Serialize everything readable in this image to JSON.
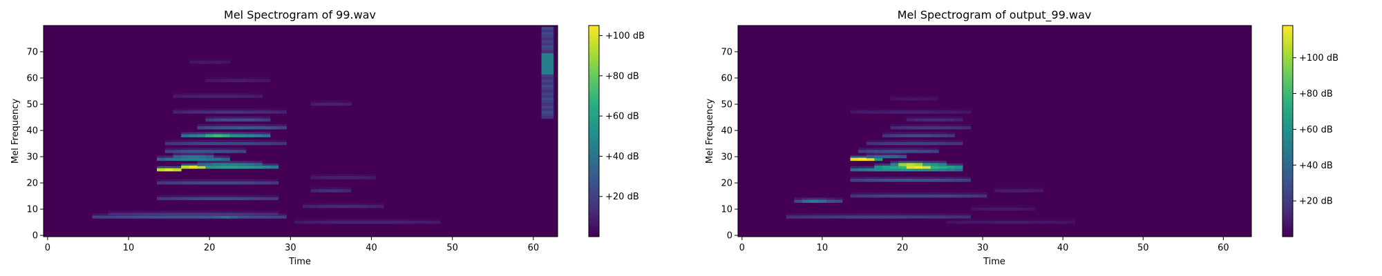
{
  "chart_data": [
    {
      "type": "heatmap",
      "title": "Mel Spectrogram of 99.wav",
      "xlabel": "Time",
      "ylabel": "Mel Frequency",
      "xlim": [
        -0.5,
        63
      ],
      "ylim": [
        -0.5,
        80
      ],
      "xticks": [
        "0",
        "10",
        "20",
        "30",
        "40",
        "50",
        "60"
      ],
      "yticks": [
        "0",
        "10",
        "20",
        "30",
        "40",
        "50",
        "60",
        "70"
      ],
      "colorbar": {
        "range": [
          0,
          105
        ],
        "ticks": [
          {
            "value": 20,
            "label": "+20 dB"
          },
          {
            "value": 40,
            "label": "+40 dB"
          },
          {
            "value": 60,
            "label": "+60 dB"
          },
          {
            "value": 80,
            "label": "+80 dB"
          },
          {
            "value": 100,
            "label": "+100 dB"
          }
        ]
      },
      "colormap": "viridis",
      "background_level": 0,
      "time_frames": 63,
      "mel_bins": 80,
      "bands": [
        {
          "y": 7,
          "x0": 5.5,
          "x1": 29.5,
          "level": 28,
          "peak_x": 22,
          "peak_level": 38
        },
        {
          "y": 8,
          "x0": 7.5,
          "x1": 28.5,
          "level": 18
        },
        {
          "y": 5,
          "x0": 30.5,
          "x1": 48.5,
          "level": 10
        },
        {
          "y": 11,
          "x0": 31.5,
          "x1": 41.5,
          "level": 12
        },
        {
          "y": 14,
          "x0": 13.5,
          "x1": 28.5,
          "level": 22
        },
        {
          "y": 17,
          "x0": 32.5,
          "x1": 37.5,
          "level": 14
        },
        {
          "y": 20,
          "x0": 13.5,
          "x1": 28.5,
          "level": 24
        },
        {
          "y": 22,
          "x0": 32.5,
          "x1": 40.5,
          "level": 10
        },
        {
          "y": 25,
          "x0": 13.5,
          "x1": 16.5,
          "level": 75,
          "peak_x": 15,
          "peak_level": 100
        },
        {
          "y": 26,
          "x0": 16.5,
          "x1": 28.5,
          "level": 60,
          "peak_x": 18,
          "peak_level": 100
        },
        {
          "y": 27,
          "x0": 18.5,
          "x1": 26.5,
          "level": 45
        },
        {
          "y": 29,
          "x0": 13.5,
          "x1": 22.5,
          "level": 45
        },
        {
          "y": 30,
          "x0": 15.5,
          "x1": 20.5,
          "level": 40
        },
        {
          "y": 32,
          "x0": 14.5,
          "x1": 24.5,
          "level": 28
        },
        {
          "y": 35,
          "x0": 14.5,
          "x1": 29.5,
          "level": 22
        },
        {
          "y": 38,
          "x0": 16.5,
          "x1": 27.5,
          "level": 55,
          "peak_x": 21,
          "peak_level": 72
        },
        {
          "y": 41,
          "x0": 18.5,
          "x1": 29.5,
          "level": 30
        },
        {
          "y": 44,
          "x0": 19.5,
          "x1": 27.5,
          "level": 25
        },
        {
          "y": 47,
          "x0": 15.5,
          "x1": 29.5,
          "level": 14
        },
        {
          "y": 50,
          "x0": 32.5,
          "x1": 37.5,
          "level": 10
        },
        {
          "y": 53,
          "x0": 15.5,
          "x1": 26.5,
          "level": 10
        },
        {
          "y": 59,
          "x0": 19.5,
          "x1": 27.5,
          "level": 8
        },
        {
          "y": 66,
          "x0": 17.5,
          "x1": 22.5,
          "level": 7
        }
      ],
      "edge_column": {
        "x0": 61,
        "x1": 62.5,
        "y0": 44.5,
        "y1": 79.5,
        "level": 25,
        "peak_y0": 62,
        "peak_y1": 69,
        "peak_level": 45
      }
    },
    {
      "type": "heatmap",
      "title": "Mel Spectrogram of output_99.wav",
      "xlabel": "Time",
      "ylabel": "Mel Frequency",
      "xlim": [
        -0.5,
        63.5
      ],
      "ylim": [
        -0.5,
        80
      ],
      "xticks": [
        "0",
        "10",
        "20",
        "30",
        "40",
        "50",
        "60"
      ],
      "yticks": [
        "0",
        "10",
        "20",
        "30",
        "40",
        "50",
        "60",
        "70"
      ],
      "colorbar": {
        "range": [
          0,
          118
        ],
        "ticks": [
          {
            "value": 20,
            "label": "+20 dB"
          },
          {
            "value": 40,
            "label": "+40 dB"
          },
          {
            "value": 60,
            "label": "+60 dB"
          },
          {
            "value": 80,
            "label": "+80 dB"
          },
          {
            "value": 100,
            "label": "+100 dB"
          }
        ]
      },
      "colormap": "viridis",
      "background_level": 0,
      "time_frames": 64,
      "mel_bins": 80,
      "bands": [
        {
          "y": 7,
          "x0": 5.5,
          "x1": 28.5,
          "level": 22
        },
        {
          "y": 13,
          "x0": 6.5,
          "x1": 12.5,
          "level": 35,
          "peak_x": 9,
          "peak_level": 50
        },
        {
          "y": 5,
          "x0": 25.5,
          "x1": 41.5,
          "level": 8
        },
        {
          "y": 10,
          "x0": 28.5,
          "x1": 36.5,
          "level": 8
        },
        {
          "y": 15,
          "x0": 13.5,
          "x1": 30.5,
          "level": 25
        },
        {
          "y": 17,
          "x0": 31.5,
          "x1": 37.5,
          "level": 10
        },
        {
          "y": 21,
          "x0": 13.5,
          "x1": 28.5,
          "level": 30
        },
        {
          "y": 25,
          "x0": 13.5,
          "x1": 27.5,
          "level": 60
        },
        {
          "y": 26,
          "x0": 16.5,
          "x1": 27.5,
          "level": 80,
          "peak_x": 22,
          "peak_level": 118
        },
        {
          "y": 27,
          "x0": 18.5,
          "x1": 25.5,
          "level": 70,
          "peak_x": 21,
          "peak_level": 105
        },
        {
          "y": 29,
          "x0": 13.5,
          "x1": 17.5,
          "level": 80,
          "peak_x": 15,
          "peak_level": 118
        },
        {
          "y": 30,
          "x0": 15.5,
          "x1": 20.5,
          "level": 40
        },
        {
          "y": 32,
          "x0": 14.5,
          "x1": 24.5,
          "level": 30
        },
        {
          "y": 35,
          "x0": 15.5,
          "x1": 27.5,
          "level": 22
        },
        {
          "y": 38,
          "x0": 17.5,
          "x1": 26.5,
          "level": 25
        },
        {
          "y": 41,
          "x0": 18.5,
          "x1": 28.5,
          "level": 18
        },
        {
          "y": 44,
          "x0": 20.5,
          "x1": 27.5,
          "level": 14
        },
        {
          "y": 47,
          "x0": 13.5,
          "x1": 28.5,
          "level": 10
        },
        {
          "y": 52,
          "x0": 18.5,
          "x1": 24.5,
          "level": 7
        }
      ]
    }
  ]
}
